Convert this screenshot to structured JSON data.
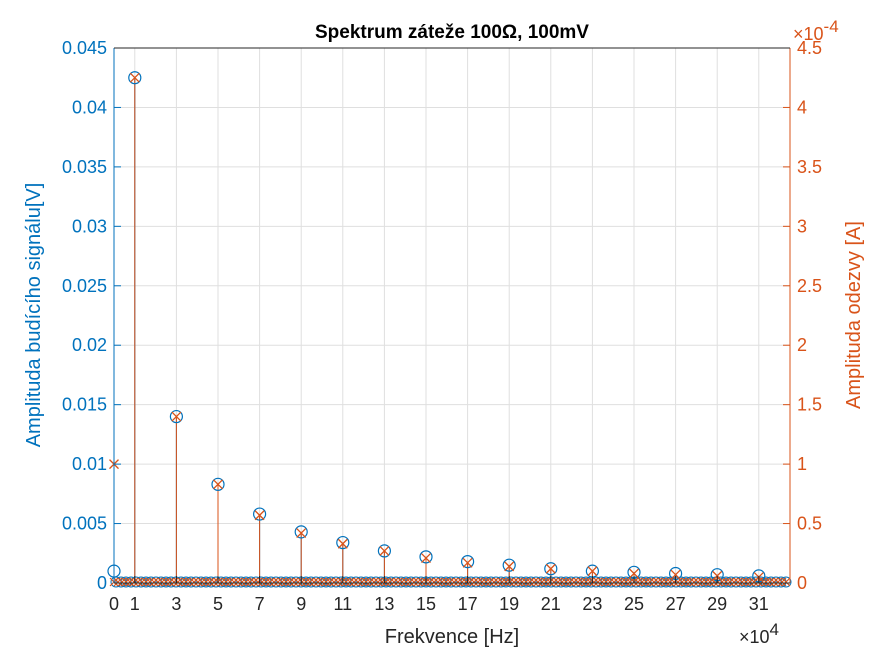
{
  "chart_data": {
    "type": "stem",
    "title": "Spektrum záteže 100Ω, 100mV",
    "xlabel": "Frekvence [Hz]",
    "x_exponent_label": "×10",
    "x_exponent": "4",
    "xlim": [
      0,
      32.5
    ],
    "xticks": [
      "0",
      "1",
      "3",
      "5",
      "7",
      "9",
      "11",
      "13",
      "15",
      "17",
      "19",
      "21",
      "23",
      "25",
      "27",
      "29",
      "31"
    ],
    "grid": true,
    "left_axis": {
      "label": "Amplituda budícího signálu[V]",
      "ylim": [
        0,
        0.045
      ],
      "ticks": [
        "0",
        "0.005",
        "0.01",
        "0.015",
        "0.02",
        "0.025",
        "0.03",
        "0.035",
        "0.04",
        "0.045"
      ],
      "color": "#0072BD"
    },
    "right_axis": {
      "label": "Amplituda odezvy [A]",
      "ylim": [
        0,
        4.5
      ],
      "ticks": [
        "0",
        "0.5",
        "1",
        "1.5",
        "2",
        "2.5",
        "3",
        "3.5",
        "4",
        "4.5"
      ],
      "exponent_label": "×10",
      "exponent": "-4",
      "color": "#D95319"
    },
    "series": [
      {
        "axis": "left",
        "marker": "circle",
        "color": "#0072BD",
        "x": [
          0,
          1,
          3,
          5,
          7,
          9,
          11,
          13,
          15,
          17,
          19,
          21,
          23,
          25,
          27,
          29,
          31
        ],
        "values": [
          0.001,
          0.0425,
          0.014,
          0.0083,
          0.0058,
          0.0043,
          0.0034,
          0.0027,
          0.0022,
          0.0018,
          0.0015,
          0.0012,
          0.001,
          0.0009,
          0.0008,
          0.0007,
          0.0006
        ]
      },
      {
        "axis": "right",
        "marker": "x",
        "color": "#D95319",
        "x": [
          0,
          1,
          3,
          5,
          7,
          9,
          11,
          13,
          15,
          17,
          19,
          21,
          23,
          25,
          27,
          29,
          31
        ],
        "values": [
          1.0,
          4.25,
          1.4,
          0.83,
          0.57,
          0.42,
          0.33,
          0.27,
          0.21,
          0.17,
          0.14,
          0.12,
          0.1,
          0.08,
          0.07,
          0.06,
          0.05
        ]
      }
    ]
  }
}
